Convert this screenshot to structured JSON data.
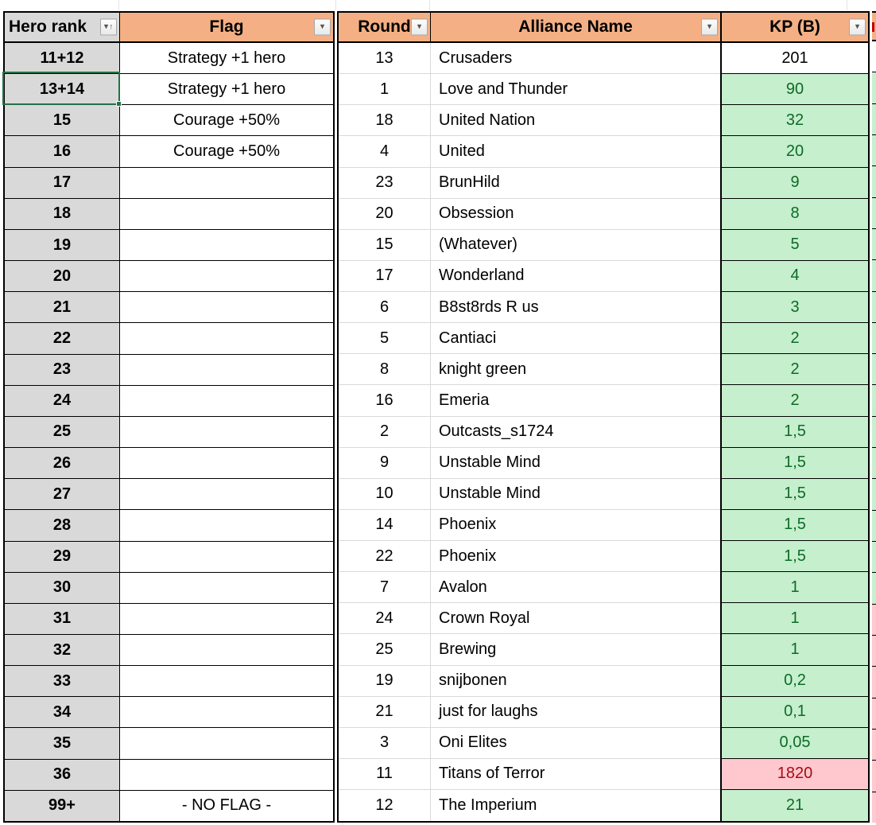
{
  "colors": {
    "header_fill": "#F4B084",
    "rank_fill": "#D9D9D9",
    "good_fill": "#C6EFCE",
    "good_text": "#0E6B25",
    "bad_fill": "#FFC7CE",
    "bad_text": "#A50D12",
    "selection": "#217346"
  },
  "icons": {
    "filter_dropdown": "chevron-down-icon",
    "sort_ascending": "arrow-up-icon",
    "filter_glyph": "▾",
    "sort_glyph": "↑"
  },
  "left_table": {
    "headers": [
      {
        "label": "Hero rank",
        "filter": "sort-ascending-filter"
      },
      {
        "label": "Flag",
        "filter": "dropdown"
      }
    ],
    "rows": [
      {
        "rank": "11+12",
        "flag": "Strategy +1 hero"
      },
      {
        "rank": "13+14",
        "flag": "Strategy +1 hero"
      },
      {
        "rank": "15",
        "flag": "Courage +50%"
      },
      {
        "rank": "16",
        "flag": "Courage +50%"
      },
      {
        "rank": "17",
        "flag": ""
      },
      {
        "rank": "18",
        "flag": ""
      },
      {
        "rank": "19",
        "flag": ""
      },
      {
        "rank": "20",
        "flag": ""
      },
      {
        "rank": "21",
        "flag": ""
      },
      {
        "rank": "22",
        "flag": ""
      },
      {
        "rank": "23",
        "flag": ""
      },
      {
        "rank": "24",
        "flag": ""
      },
      {
        "rank": "25",
        "flag": ""
      },
      {
        "rank": "26",
        "flag": ""
      },
      {
        "rank": "27",
        "flag": ""
      },
      {
        "rank": "28",
        "flag": ""
      },
      {
        "rank": "29",
        "flag": ""
      },
      {
        "rank": "30",
        "flag": ""
      },
      {
        "rank": "31",
        "flag": ""
      },
      {
        "rank": "32",
        "flag": ""
      },
      {
        "rank": "33",
        "flag": ""
      },
      {
        "rank": "34",
        "flag": ""
      },
      {
        "rank": "35",
        "flag": ""
      },
      {
        "rank": "36",
        "flag": ""
      },
      {
        "rank": "99+",
        "flag": "- NO FLAG -"
      }
    ],
    "selected_cell": {
      "row_index": 1,
      "column": "rank",
      "value": "13+14"
    }
  },
  "right_table": {
    "headers": [
      {
        "label": "Round",
        "filter": "dropdown"
      },
      {
        "label": "Alliance Name",
        "filter": "dropdown"
      },
      {
        "label": "KP (B)",
        "filter": "dropdown"
      }
    ],
    "rows": [
      {
        "round": "13",
        "alliance": "Crusaders",
        "kp": "201",
        "kp_style": "plain"
      },
      {
        "round": "1",
        "alliance": "Love and Thunder",
        "kp": "90",
        "kp_style": "good"
      },
      {
        "round": "18",
        "alliance": "United Nation",
        "kp": "32",
        "kp_style": "good"
      },
      {
        "round": "4",
        "alliance": "United",
        "kp": "20",
        "kp_style": "good"
      },
      {
        "round": "23",
        "alliance": "BrunHild",
        "kp": "9",
        "kp_style": "good"
      },
      {
        "round": "20",
        "alliance": "Obsession",
        "kp": "8",
        "kp_style": "good"
      },
      {
        "round": "15",
        "alliance": "(Whatever)",
        "kp": "5",
        "kp_style": "good"
      },
      {
        "round": "17",
        "alliance": "Wonderland",
        "kp": "4",
        "kp_style": "good"
      },
      {
        "round": "6",
        "alliance": "B8st8rds R us",
        "kp": "3",
        "kp_style": "good"
      },
      {
        "round": "5",
        "alliance": "Cantiaci",
        "kp": "2",
        "kp_style": "good"
      },
      {
        "round": "8",
        "alliance": "knight green",
        "kp": "2",
        "kp_style": "good"
      },
      {
        "round": "16",
        "alliance": "Emeria",
        "kp": "2",
        "kp_style": "good"
      },
      {
        "round": "2",
        "alliance": "Outcasts_s1724",
        "kp": "1,5",
        "kp_style": "good"
      },
      {
        "round": "9",
        "alliance": "Unstable Mind",
        "kp": "1,5",
        "kp_style": "good"
      },
      {
        "round": "10",
        "alliance": "Unstable Mind",
        "kp": "1,5",
        "kp_style": "good"
      },
      {
        "round": "14",
        "alliance": "Phoenix",
        "kp": "1,5",
        "kp_style": "good"
      },
      {
        "round": "22",
        "alliance": "Phoenix",
        "kp": "1,5",
        "kp_style": "good"
      },
      {
        "round": "7",
        "alliance": "Avalon",
        "kp": "1",
        "kp_style": "good"
      },
      {
        "round": "24",
        "alliance": "Crown Royal",
        "kp": "1",
        "kp_style": "good"
      },
      {
        "round": "25",
        "alliance": "Brewing",
        "kp": "1",
        "kp_style": "good"
      },
      {
        "round": "19",
        "alliance": "snijbonen",
        "kp": "0,2",
        "kp_style": "good"
      },
      {
        "round": "21",
        "alliance": "just for laughs",
        "kp": "0,1",
        "kp_style": "good"
      },
      {
        "round": "3",
        "alliance": "Oni Elites",
        "kp": "0,05",
        "kp_style": "good"
      },
      {
        "round": "11",
        "alliance": "Titans of Terror",
        "kp": "1820",
        "kp_style": "bad"
      },
      {
        "round": "12",
        "alliance": "The Imperium",
        "kp": "21",
        "kp_style": "good"
      }
    ]
  },
  "partial_column": {
    "cell_styles": [
      "plain",
      "good",
      "good",
      "good",
      "good",
      "good",
      "good",
      "good",
      "good",
      "good",
      "good",
      "good",
      "good",
      "good",
      "good",
      "good",
      "good",
      "good",
      "bad",
      "bad",
      "bad",
      "bad",
      "bad",
      "bad",
      "bad"
    ]
  }
}
